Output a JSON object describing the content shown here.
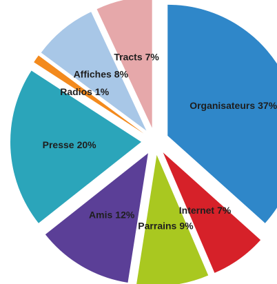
{
  "chart_data": {
    "type": "pie",
    "categories": [
      "Organisateurs",
      "Internet",
      "Parrains",
      "Amis",
      "Presse",
      "Radios",
      "Affiches",
      "Tracts"
    ],
    "values": [
      37,
      7,
      9,
      12,
      20,
      1,
      8,
      7
    ],
    "value_labels": [
      "37%",
      "7%",
      "9%",
      "12%",
      "20%",
      "1%",
      "8%",
      "7%"
    ],
    "colors": [
      "#2f87c9",
      "#d62129",
      "#a9c820",
      "#5b3f97",
      "#2ba5ba",
      "#f38a1d",
      "#a8c7e7",
      "#e6a8aa"
    ]
  }
}
